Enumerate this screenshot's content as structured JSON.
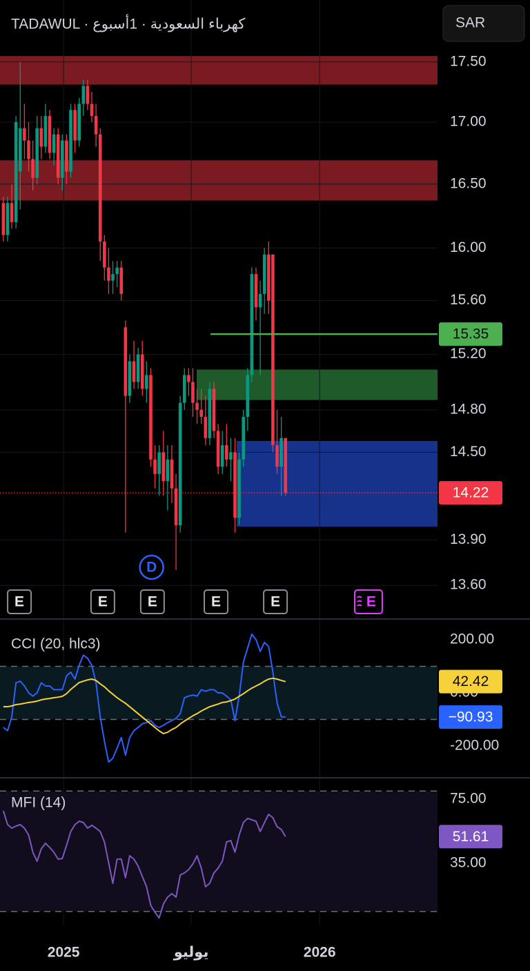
{
  "header": {
    "title": "TADAWUL · كهرباء السعودية · 1أسبوع",
    "currency": "SAR"
  },
  "chart_data": [
    {
      "type": "candlestick",
      "x": [
        0,
        1,
        2,
        3,
        4,
        5,
        6,
        7,
        8,
        9,
        10,
        11,
        12,
        13,
        14,
        15,
        16,
        17,
        18,
        19,
        20,
        21,
        22,
        23,
        24,
        25,
        26,
        27,
        28,
        29,
        30,
        31,
        32,
        33,
        34,
        35,
        36,
        37,
        38,
        39,
        40,
        41,
        42,
        43,
        44,
        45,
        46,
        47,
        48,
        49,
        50,
        51,
        52,
        53,
        54,
        55,
        56,
        57,
        58,
        59,
        60,
        61,
        62,
        63,
        64,
        65,
        66,
        67
      ],
      "open": [
        16.35,
        16.1,
        16.35,
        16.2,
        16.6,
        16.95,
        16.85,
        16.7,
        16.55,
        16.95,
        16.8,
        17.05,
        16.75,
        16.9,
        16.55,
        16.85,
        16.6,
        17.1,
        16.85,
        17.15,
        17.3,
        17.15,
        17.05,
        16.9,
        16.05,
        15.85,
        15.75,
        15.8,
        15.85,
        15.4,
        14.9,
        15.15,
        15.0,
        15.2,
        14.95,
        15.05,
        14.45,
        14.35,
        14.5,
        14.3,
        14.45,
        14.25,
        14.0,
        14.85,
        15.05,
        15.0,
        14.85,
        14.8,
        14.75,
        14.6,
        14.95,
        14.65,
        14.4,
        14.55,
        14.45,
        14.5,
        14.05,
        14.45,
        14.75,
        15.05,
        15.8,
        15.55,
        15.65,
        15.95,
        15.95,
        14.55,
        14.4,
        14.6
      ],
      "high": [
        16.4,
        16.4,
        16.5,
        17.05,
        17.5,
        17.15,
        17.0,
        16.85,
        17.05,
        17.05,
        17.15,
        17.1,
        16.95,
        16.95,
        16.9,
        16.9,
        17.15,
        17.15,
        17.2,
        17.35,
        17.35,
        17.25,
        17.15,
        16.95,
        16.1,
        16.0,
        15.9,
        15.9,
        15.9,
        15.45,
        15.2,
        15.3,
        15.25,
        15.3,
        15.15,
        15.1,
        14.55,
        14.55,
        14.65,
        14.55,
        14.55,
        14.35,
        14.9,
        15.1,
        15.1,
        15.1,
        14.95,
        14.95,
        14.9,
        15.0,
        15.0,
        14.7,
        14.65,
        14.7,
        14.6,
        14.6,
        14.5,
        14.8,
        15.1,
        15.85,
        15.85,
        15.75,
        16.0,
        16.05,
        15.95,
        14.8,
        14.75,
        14.6
      ],
      "low": [
        16.05,
        16.05,
        16.15,
        16.15,
        16.3,
        16.7,
        16.6,
        16.45,
        16.5,
        16.7,
        16.75,
        16.7,
        16.65,
        16.5,
        16.45,
        16.5,
        16.55,
        16.75,
        16.8,
        17.05,
        17.1,
        17.0,
        16.8,
        15.9,
        15.75,
        15.65,
        15.65,
        15.7,
        15.6,
        13.95,
        14.85,
        14.95,
        14.95,
        14.9,
        14.85,
        14.4,
        14.25,
        14.2,
        14.2,
        14.1,
        14.15,
        13.7,
        13.95,
        14.8,
        14.9,
        14.75,
        14.7,
        14.7,
        14.55,
        14.55,
        14.6,
        14.35,
        14.35,
        14.4,
        14.3,
        13.95,
        14.0,
        14.4,
        14.65,
        15.0,
        15.45,
        15.05,
        15.5,
        15.5,
        14.5,
        14.35,
        14.2,
        14.2
      ],
      "close": [
        16.1,
        16.35,
        16.2,
        17.0,
        16.95,
        16.85,
        16.7,
        16.55,
        16.95,
        16.8,
        17.05,
        16.75,
        16.9,
        16.55,
        16.85,
        16.6,
        17.1,
        16.85,
        17.15,
        17.3,
        17.15,
        17.05,
        16.9,
        16.05,
        15.85,
        15.75,
        15.8,
        15.85,
        15.65,
        14.9,
        15.15,
        15.0,
        15.2,
        14.95,
        15.05,
        14.45,
        14.35,
        14.5,
        14.3,
        14.45,
        14.25,
        14.0,
        14.85,
        15.05,
        15.0,
        14.85,
        14.8,
        14.75,
        14.6,
        14.95,
        14.65,
        14.4,
        14.55,
        14.45,
        14.5,
        14.05,
        14.45,
        14.75,
        15.05,
        15.8,
        15.55,
        15.65,
        15.95,
        15.6,
        14.55,
        14.4,
        14.6,
        14.22
      ],
      "up_color": "#089981",
      "down_color": "#f23645",
      "xlim": [
        -0.8,
        103.1
      ],
      "xticks": [
        {
          "value": 14.3,
          "label": "2025"
        },
        {
          "value": 44.6,
          "label": "يوليو"
        },
        {
          "value": 75.1,
          "label": "2026"
        }
      ],
      "ylim": [
        13.39,
        18.03
      ],
      "log_scale": true,
      "yticks": [
        {
          "value": 13.6,
          "label": "13.60"
        },
        {
          "value": 13.9,
          "label": "13.90"
        },
        {
          "value": 14.5,
          "label": "14.50"
        },
        {
          "value": 14.8,
          "label": "14.80"
        },
        {
          "value": 15.2,
          "label": "15.20"
        },
        {
          "value": 15.6,
          "label": "15.60"
        },
        {
          "value": 16,
          "label": "16.00"
        },
        {
          "value": 16.5,
          "label": "16.50"
        },
        {
          "value": 17,
          "label": "17.00"
        },
        {
          "value": 17.5,
          "label": "17.50"
        }
      ],
      "grid": true,
      "zones": [
        {
          "low": 17.31,
          "high": 17.55,
          "color": "#7a1b22"
        },
        {
          "low": 16.37,
          "high": 16.69,
          "color": "#7a1b22"
        },
        {
          "low": 14.87,
          "high": 15.09,
          "from": 45.9,
          "color": "#1f5a2a"
        },
        {
          "low": 13.99,
          "high": 14.58,
          "from": 55.4,
          "color": "#17328a"
        }
      ],
      "levels": [
        {
          "value": 15.35,
          "label": "15.35",
          "from": 49.2,
          "color": "#4caf50",
          "text_color": "#0b0b0b",
          "style": "solid"
        },
        {
          "value": 14.22,
          "label": "14.22",
          "color": "#f23645",
          "text_color": "#ffffff",
          "style": "dotted"
        }
      ],
      "events": [
        {
          "x": 3.8,
          "label": "E"
        },
        {
          "x": 23.6,
          "label": "E"
        },
        {
          "x": 35.4,
          "label": "E"
        },
        {
          "x": 50.5,
          "label": "E"
        },
        {
          "x": 64.6,
          "label": "E"
        },
        {
          "x": 86.7,
          "label": "E",
          "color": "#e040fb"
        }
      ],
      "dividends": [
        {
          "x": 35.2,
          "label": "D"
        }
      ]
    },
    {
      "type": "line",
      "title": "CCI (20, hlc3)",
      "x": [
        0,
        1,
        2,
        3,
        4,
        5,
        6,
        7,
        8,
        9,
        10,
        11,
        12,
        13,
        14,
        15,
        16,
        17,
        18,
        19,
        20,
        21,
        22,
        23,
        24,
        25,
        26,
        27,
        28,
        29,
        30,
        31,
        32,
        33,
        34,
        35,
        36,
        37,
        38,
        39,
        40,
        41,
        42,
        43,
        44,
        45,
        46,
        47,
        48,
        49,
        50,
        51,
        52,
        53,
        54,
        55,
        56,
        57,
        58,
        59,
        60,
        61,
        62,
        63,
        64,
        65,
        66,
        67
      ],
      "xlim": [
        -0.8,
        103.1
      ],
      "ylim": [
        -314,
        270
      ],
      "yticks": [
        {
          "value": 200,
          "label": "200.00"
        },
        {
          "value": 0,
          "label": "0.00"
        },
        {
          "value": -200,
          "label": "-200.00"
        }
      ],
      "bands": [
        100,
        -100
      ],
      "band_fill": "#0a1a21",
      "series": [
        {
          "color": "#2962ff",
          "value_label": "−90.93",
          "label_text_color": "#ffffff",
          "values": [
            -130,
            -142,
            -90,
            38,
            44,
            26,
            0,
            -12,
            0,
            38,
            26,
            26,
            12,
            12,
            12,
            64,
            78,
            52,
            104,
            142,
            130,
            104,
            38,
            -90,
            -182,
            -260,
            -246,
            -208,
            -168,
            -234,
            -168,
            -142,
            -130,
            -116,
            -112,
            -104,
            -122,
            -130,
            -122,
            -112,
            -104,
            -96,
            -78,
            -18,
            -12,
            -8,
            -12,
            12,
            6,
            12,
            12,
            0,
            0,
            -12,
            -26,
            -104,
            -12,
            116,
            168,
            221,
            200,
            156,
            190,
            174,
            78,
            -38,
            -90,
            -90.93
          ]
        },
        {
          "color": "#f7d13a",
          "value_label": "42.42",
          "label_text_color": "#0b0b0b",
          "values": [
            -52,
            -52,
            -49,
            -44,
            -42,
            -39,
            -36,
            -34,
            -31,
            -26,
            -23,
            -21,
            -18,
            -16,
            -13,
            -3,
            13,
            26,
            39,
            44,
            49,
            52,
            47,
            34,
            23,
            8,
            -5,
            -18,
            -29,
            -39,
            -52,
            -65,
            -78,
            -91,
            -104,
            -117,
            -130,
            -143,
            -153,
            -148,
            -138,
            -130,
            -117,
            -106,
            -96,
            -86,
            -78,
            -68,
            -60,
            -52,
            -47,
            -42,
            -36,
            -34,
            -29,
            -23,
            -13,
            -3,
            8,
            18,
            26,
            34,
            44,
            52,
            55,
            52,
            47,
            42.42
          ]
        }
      ]
    },
    {
      "type": "line",
      "title": "MFI (14)",
      "x": [
        0,
        1,
        2,
        3,
        4,
        5,
        6,
        7,
        8,
        9,
        10,
        11,
        12,
        13,
        14,
        15,
        16,
        17,
        18,
        19,
        20,
        21,
        22,
        23,
        24,
        25,
        26,
        27,
        28,
        29,
        30,
        31,
        32,
        33,
        34,
        35,
        36,
        37,
        38,
        39,
        40,
        41,
        42,
        43,
        44,
        45,
        46,
        47,
        48,
        49,
        50,
        51,
        52,
        53,
        54,
        55,
        56,
        57,
        58,
        59,
        60,
        61,
        62,
        63,
        64,
        65,
        66,
        67
      ],
      "xlim": [
        -0.8,
        103.1
      ],
      "ylim": [
        -3.3,
        87
      ],
      "yticks": [
        {
          "value": 75,
          "label": "75.00"
        },
        {
          "value": 35,
          "label": "35.00"
        }
      ],
      "bands": [
        80,
        5
      ],
      "band_fill": "#110d1c",
      "series": [
        {
          "color": "#7e57c2",
          "value_label": "51.61",
          "label_text_color": "#ffffff",
          "values": [
            67.7,
            59.1,
            56.9,
            58.2,
            59.1,
            56.9,
            52.6,
            41.9,
            36.3,
            44.0,
            47.5,
            44.9,
            41.9,
            37.6,
            38.0,
            46.2,
            54.8,
            59.1,
            61.2,
            60.4,
            56.9,
            58.7,
            56.9,
            54.8,
            48.3,
            35.4,
            22.5,
            37.6,
            37.6,
            26.0,
            39.7,
            37.6,
            33.3,
            26.8,
            20.4,
            8.8,
            4.5,
            1.0,
            9.6,
            13.9,
            16.1,
            13.9,
            27.7,
            29.0,
            31.1,
            34.6,
            39.7,
            32.0,
            20.4,
            22.5,
            29.0,
            32.0,
            36.3,
            48.3,
            49.2,
            41.9,
            52.6,
            60.4,
            63.0,
            62.1,
            61.2,
            54.8,
            60.4,
            65.5,
            63.4,
            57.8,
            56.1,
            51.61
          ]
        }
      ]
    }
  ]
}
